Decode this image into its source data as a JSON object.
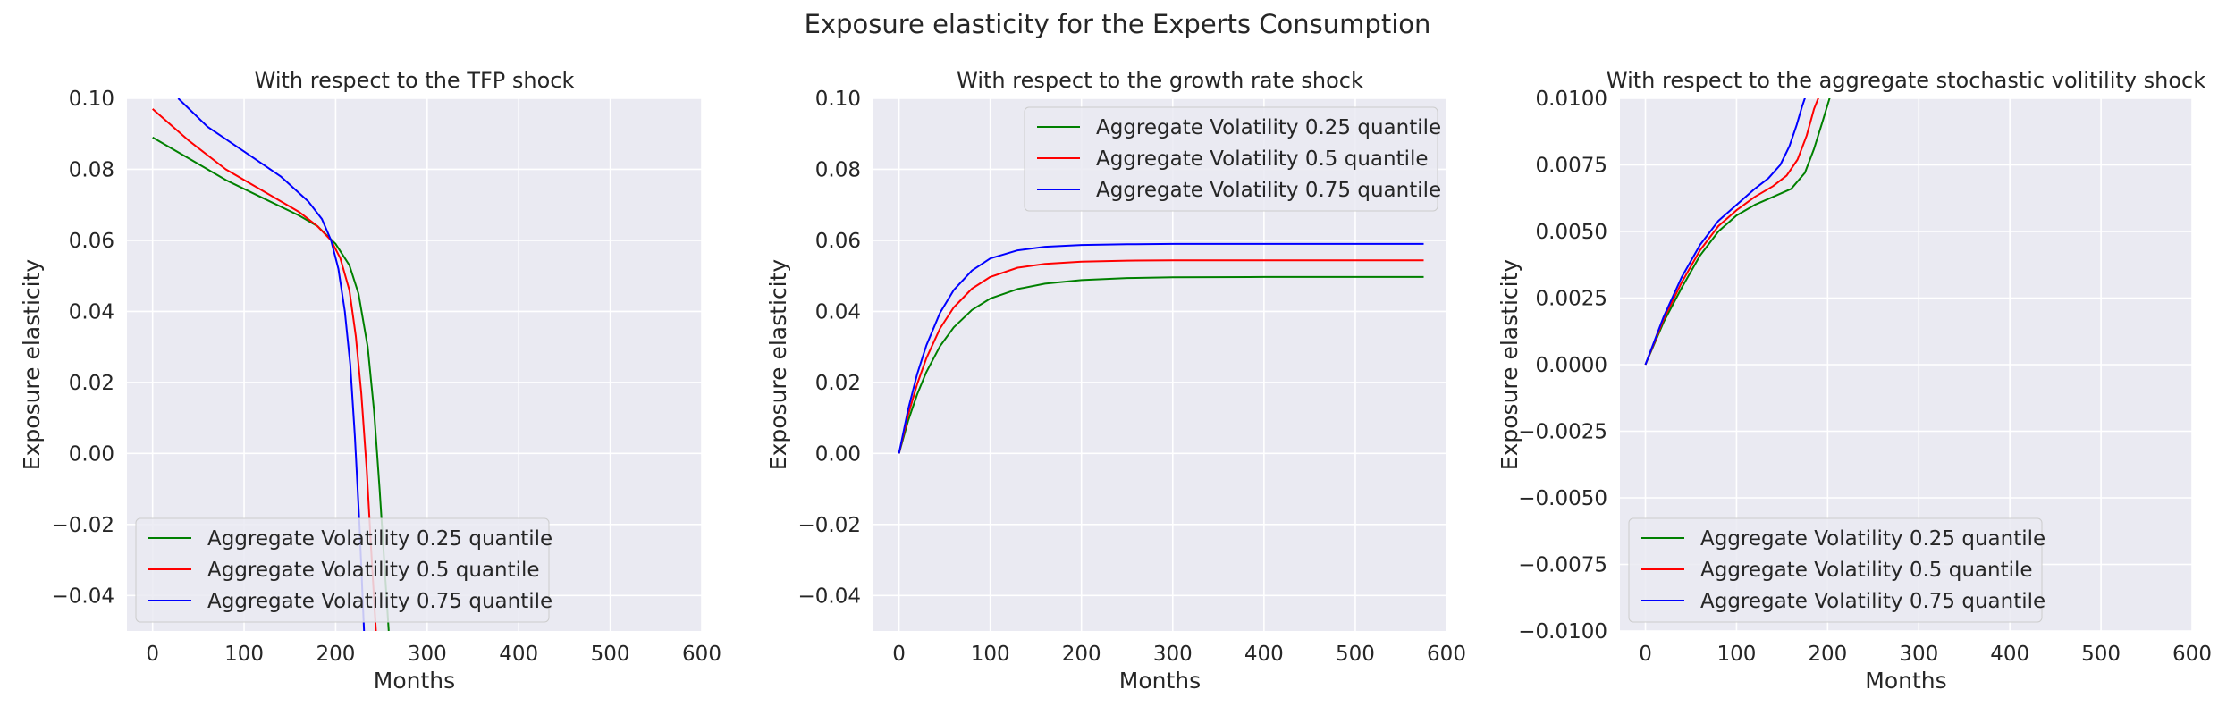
{
  "figure_title": "Exposure elasticity for the Experts Consumption",
  "chart_data": [
    {
      "type": "line",
      "title": "With respect to the TFP shock",
      "xlabel": "Months",
      "ylabel": "Exposure elasticity",
      "xlim": [
        -28,
        600
      ],
      "ylim": [
        -0.05,
        0.1
      ],
      "xticks": [
        0,
        100,
        200,
        300,
        400,
        500,
        600
      ],
      "yticks": [
        -0.04,
        -0.02,
        0.0,
        0.02,
        0.04,
        0.06,
        0.08,
        0.1
      ],
      "ytick_labels": [
        "−0.04",
        "−0.02",
        "0.00",
        "0.02",
        "0.04",
        "0.06",
        "0.08",
        "0.10"
      ],
      "grid": true,
      "legend_position": "lower-left",
      "series": [
        {
          "name": "Aggregate Volatility 0.25 quantile",
          "color": "#008000",
          "x": [
            0,
            40,
            80,
            120,
            160,
            180,
            200,
            215,
            225,
            235,
            242,
            248,
            253,
            258
          ],
          "y": [
            0.089,
            0.083,
            0.077,
            0.072,
            0.067,
            0.064,
            0.059,
            0.053,
            0.045,
            0.03,
            0.012,
            -0.01,
            -0.03,
            -0.05
          ]
        },
        {
          "name": "Aggregate Volatility 0.5 quantile",
          "color": "#ff0000",
          "x": [
            0,
            40,
            80,
            120,
            160,
            180,
            195,
            205,
            215,
            222,
            228,
            234,
            239,
            244
          ],
          "y": [
            0.097,
            0.088,
            0.08,
            0.074,
            0.068,
            0.064,
            0.06,
            0.055,
            0.046,
            0.033,
            0.017,
            -0.005,
            -0.028,
            -0.05
          ]
        },
        {
          "name": "Aggregate Volatility 0.75 quantile",
          "color": "#0000ff",
          "x": [
            28,
            60,
            100,
            140,
            170,
            185,
            195,
            203,
            210,
            216,
            221,
            226,
            231
          ],
          "y": [
            0.1,
            0.092,
            0.085,
            0.078,
            0.071,
            0.066,
            0.06,
            0.052,
            0.04,
            0.025,
            0.005,
            -0.02,
            -0.05
          ]
        }
      ]
    },
    {
      "type": "line",
      "title": "With respect to the growth rate shock",
      "xlabel": "Months",
      "ylabel": "Exposure elasticity",
      "xlim": [
        -28,
        600
      ],
      "ylim": [
        -0.05,
        0.1
      ],
      "xticks": [
        0,
        100,
        200,
        300,
        400,
        500,
        600
      ],
      "yticks": [
        -0.04,
        -0.02,
        0.0,
        0.02,
        0.04,
        0.06,
        0.08,
        0.1
      ],
      "ytick_labels": [
        "−0.04",
        "−0.02",
        "0.00",
        "0.02",
        "0.04",
        "0.06",
        "0.08",
        "0.10"
      ],
      "grid": true,
      "legend_position": "upper-right",
      "series": [
        {
          "name": "Aggregate Volatility 0.25 quantile",
          "color": "#008000",
          "x": [
            0,
            10,
            20,
            30,
            45,
            60,
            80,
            100,
            130,
            160,
            200,
            250,
            300,
            400,
            575
          ],
          "y": [
            0.0,
            0.0092,
            0.0167,
            0.0229,
            0.0302,
            0.0355,
            0.0404,
            0.0436,
            0.0463,
            0.0478,
            0.0488,
            0.0494,
            0.0496,
            0.0497,
            0.0497
          ]
        },
        {
          "name": "Aggregate Volatility 0.5 quantile",
          "color": "#ff0000",
          "x": [
            0,
            10,
            20,
            30,
            45,
            60,
            80,
            100,
            130,
            160,
            200,
            250,
            300,
            400,
            575
          ],
          "y": [
            0.0,
            0.0108,
            0.0196,
            0.0268,
            0.0352,
            0.0411,
            0.0464,
            0.0497,
            0.0523,
            0.0534,
            0.054,
            0.0543,
            0.0544,
            0.0544,
            0.0544
          ]
        },
        {
          "name": "Aggregate Volatility 0.75 quantile",
          "color": "#0000ff",
          "x": [
            0,
            10,
            20,
            30,
            45,
            60,
            80,
            100,
            130,
            160,
            200,
            250,
            300,
            400,
            575
          ],
          "y": [
            0.0,
            0.0124,
            0.0224,
            0.0304,
            0.0396,
            0.046,
            0.0515,
            0.0549,
            0.0572,
            0.0582,
            0.0587,
            0.0589,
            0.059,
            0.059,
            0.059
          ]
        }
      ]
    },
    {
      "type": "line",
      "title": "With respect to the aggregate stochastic volitility shock",
      "xlabel": "Months",
      "ylabel": "Exposure elasticity",
      "xlim": [
        -28,
        600
      ],
      "ylim": [
        -0.01,
        0.01
      ],
      "xticks": [
        0,
        100,
        200,
        300,
        400,
        500,
        600
      ],
      "yticks": [
        -0.01,
        -0.0075,
        -0.005,
        -0.0025,
        0.0,
        0.0025,
        0.005,
        0.0075,
        0.01
      ],
      "ytick_labels": [
        "−0.0100",
        "−0.0075",
        "−0.0050",
        "−0.0025",
        "0.0000",
        "0.0025",
        "0.0050",
        "0.0075",
        "0.0100"
      ],
      "grid": true,
      "legend_position": "lower-left",
      "series": [
        {
          "name": "Aggregate Volatility 0.25 quantile",
          "color": "#008000",
          "x": [
            0,
            20,
            40,
            60,
            80,
            100,
            120,
            140,
            160,
            175,
            185,
            195,
            203,
            210
          ],
          "y": [
            0.0,
            0.0016,
            0.0029,
            0.0041,
            0.005,
            0.0056,
            0.006,
            0.0063,
            0.0066,
            0.0072,
            0.0081,
            0.0092,
            0.0101,
            0.0102
          ]
        },
        {
          "name": "Aggregate Volatility 0.5 quantile",
          "color": "#ff0000",
          "x": [
            0,
            20,
            40,
            60,
            80,
            100,
            120,
            140,
            155,
            167,
            177,
            185,
            192
          ],
          "y": [
            0.0,
            0.0017,
            0.0031,
            0.0043,
            0.0052,
            0.0058,
            0.0063,
            0.0067,
            0.0071,
            0.0077,
            0.0086,
            0.0096,
            0.0102
          ]
        },
        {
          "name": "Aggregate Volatility 0.75 quantile",
          "color": "#0000ff",
          "x": [
            0,
            20,
            40,
            60,
            80,
            100,
            120,
            135,
            148,
            158,
            166,
            172,
            177
          ],
          "y": [
            0.0,
            0.0018,
            0.0033,
            0.0045,
            0.0054,
            0.006,
            0.0066,
            0.007,
            0.0075,
            0.0082,
            0.009,
            0.0097,
            0.0102
          ]
        }
      ]
    }
  ]
}
